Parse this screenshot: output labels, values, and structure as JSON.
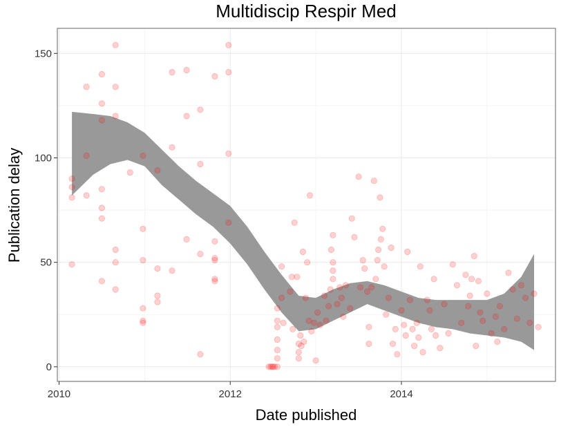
{
  "chart_data": {
    "type": "scatter",
    "title": "Multidiscip Respir Med",
    "xlabel": "Date published",
    "ylabel": "Publication delay",
    "xlim": [
      2009.98,
      2015.8
    ],
    "ylim": [
      -7,
      162
    ],
    "x_ticks": [
      2010,
      2012,
      2014
    ],
    "x_tick_labels": [
      "2010",
      "2012",
      "2014"
    ],
    "y_ticks": [
      0,
      50,
      100,
      150
    ],
    "y_tick_labels": [
      "0",
      "50",
      "100",
      "150"
    ],
    "grid": true,
    "legend": "none",
    "point_color": "#ff0000",
    "band_color": "#999999",
    "series": [
      {
        "type": "points",
        "points": [
          [
            2010.15,
            81
          ],
          [
            2010.15,
            86
          ],
          [
            2010.15,
            90
          ],
          [
            2010.15,
            49
          ],
          [
            2010.32,
            134
          ],
          [
            2010.32,
            101
          ],
          [
            2010.32,
            82
          ],
          [
            2010.5,
            140
          ],
          [
            2010.5,
            126
          ],
          [
            2010.5,
            118
          ],
          [
            2010.5,
            85
          ],
          [
            2010.5,
            76
          ],
          [
            2010.5,
            71
          ],
          [
            2010.5,
            41
          ],
          [
            2010.66,
            154
          ],
          [
            2010.66,
            134
          ],
          [
            2010.66,
            120
          ],
          [
            2010.66,
            56
          ],
          [
            2010.66,
            50
          ],
          [
            2010.66,
            37
          ],
          [
            2010.83,
            93
          ],
          [
            2010.98,
            101
          ],
          [
            2010.98,
            66
          ],
          [
            2010.98,
            51
          ],
          [
            2010.98,
            28
          ],
          [
            2010.98,
            22
          ],
          [
            2010.98,
            21
          ],
          [
            2011.15,
            94
          ],
          [
            2011.15,
            47
          ],
          [
            2011.15,
            34
          ],
          [
            2011.15,
            31
          ],
          [
            2011.32,
            141
          ],
          [
            2011.32,
            105
          ],
          [
            2011.32,
            46
          ],
          [
            2011.49,
            142
          ],
          [
            2011.49,
            120
          ],
          [
            2011.49,
            61
          ],
          [
            2011.65,
            123
          ],
          [
            2011.65,
            97
          ],
          [
            2011.65,
            54
          ],
          [
            2011.65,
            6
          ],
          [
            2011.82,
            139
          ],
          [
            2011.82,
            60
          ],
          [
            2011.82,
            52
          ],
          [
            2011.82,
            51
          ],
          [
            2011.82,
            42
          ],
          [
            2011.82,
            41
          ],
          [
            2011.98,
            154
          ],
          [
            2011.98,
            141
          ],
          [
            2011.98,
            102
          ],
          [
            2011.98,
            69
          ],
          [
            2012.45,
            0
          ],
          [
            2012.47,
            0
          ],
          [
            2012.49,
            0
          ],
          [
            2012.5,
            0
          ],
          [
            2012.52,
            0
          ],
          [
            2012.55,
            0
          ],
          [
            2012.55,
            4
          ],
          [
            2012.55,
            8
          ],
          [
            2012.55,
            13
          ],
          [
            2012.55,
            19
          ],
          [
            2012.55,
            22
          ],
          [
            2012.55,
            28
          ],
          [
            2012.6,
            48
          ],
          [
            2012.6,
            33
          ],
          [
            2012.62,
            21
          ],
          [
            2012.7,
            36
          ],
          [
            2012.72,
            43
          ],
          [
            2012.73,
            18
          ],
          [
            2012.75,
            69
          ],
          [
            2012.78,
            43
          ],
          [
            2012.8,
            11
          ],
          [
            2012.8,
            7
          ],
          [
            2012.8,
            4
          ],
          [
            2012.82,
            15
          ],
          [
            2012.83,
            10
          ],
          [
            2012.85,
            55
          ],
          [
            2012.86,
            12
          ],
          [
            2012.88,
            33
          ],
          [
            2012.9,
            50
          ],
          [
            2012.92,
            22
          ],
          [
            2012.93,
            82
          ],
          [
            2012.95,
            17
          ],
          [
            2012.98,
            21
          ],
          [
            2013.0,
            3
          ],
          [
            2013.02,
            26
          ],
          [
            2013.05,
            20
          ],
          [
            2013.1,
            34
          ],
          [
            2013.12,
            22
          ],
          [
            2013.15,
            29
          ],
          [
            2013.17,
            37
          ],
          [
            2013.18,
            56
          ],
          [
            2013.2,
            63
          ],
          [
            2013.2,
            50
          ],
          [
            2013.2,
            46
          ],
          [
            2013.2,
            42
          ],
          [
            2013.25,
            30
          ],
          [
            2013.28,
            38
          ],
          [
            2013.3,
            33
          ],
          [
            2013.32,
            24
          ],
          [
            2013.35,
            39
          ],
          [
            2013.4,
            28
          ],
          [
            2013.42,
            71
          ],
          [
            2013.45,
            62
          ],
          [
            2013.5,
            91
          ],
          [
            2013.52,
            38
          ],
          [
            2013.55,
            51
          ],
          [
            2013.57,
            47
          ],
          [
            2013.6,
            36
          ],
          [
            2013.62,
            19
          ],
          [
            2013.62,
            11
          ],
          [
            2013.65,
            38
          ],
          [
            2013.68,
            89
          ],
          [
            2013.7,
            42
          ],
          [
            2013.72,
            51
          ],
          [
            2013.73,
            56
          ],
          [
            2013.75,
            81
          ],
          [
            2013.76,
            61
          ],
          [
            2013.78,
            66
          ],
          [
            2013.8,
            48
          ],
          [
            2013.82,
            25
          ],
          [
            2013.85,
            33
          ],
          [
            2013.88,
            57
          ],
          [
            2013.9,
            11
          ],
          [
            2013.93,
            18
          ],
          [
            2013.95,
            6
          ],
          [
            2014.0,
            27
          ],
          [
            2014.03,
            20
          ],
          [
            2014.05,
            15
          ],
          [
            2014.07,
            55
          ],
          [
            2014.1,
            32
          ],
          [
            2014.13,
            18
          ],
          [
            2014.15,
            10
          ],
          [
            2014.18,
            21
          ],
          [
            2014.2,
            14
          ],
          [
            2014.22,
            48
          ],
          [
            2014.25,
            7
          ],
          [
            2014.3,
            32
          ],
          [
            2014.33,
            27
          ],
          [
            2014.35,
            18
          ],
          [
            2014.38,
            42
          ],
          [
            2014.4,
            15
          ],
          [
            2014.45,
            9
          ],
          [
            2014.5,
            30
          ],
          [
            2014.55,
            16
          ],
          [
            2014.6,
            49
          ],
          [
            2014.65,
            39
          ],
          [
            2014.7,
            21
          ],
          [
            2014.75,
            44
          ],
          [
            2014.78,
            29
          ],
          [
            2014.8,
            34
          ],
          [
            2014.82,
            42
          ],
          [
            2014.85,
            53
          ],
          [
            2014.87,
            10
          ],
          [
            2014.9,
            41
          ],
          [
            2014.92,
            26
          ],
          [
            2014.95,
            22
          ],
          [
            2015.0,
            35
          ],
          [
            2015.05,
            16
          ],
          [
            2015.1,
            24
          ],
          [
            2015.12,
            12
          ],
          [
            2015.15,
            29
          ],
          [
            2015.2,
            18
          ],
          [
            2015.25,
            45
          ],
          [
            2015.3,
            37
          ],
          [
            2015.35,
            23
          ],
          [
            2015.4,
            39
          ],
          [
            2015.45,
            33
          ],
          [
            2015.5,
            21
          ],
          [
            2015.55,
            35
          ],
          [
            2015.6,
            19
          ]
        ]
      },
      {
        "type": "confidence_band",
        "x": [
          2010.15,
          2010.4,
          2010.6,
          2010.8,
          2011.0,
          2011.2,
          2011.4,
          2011.6,
          2011.8,
          2012.0,
          2012.2,
          2012.4,
          2012.6,
          2012.8,
          2013.0,
          2013.2,
          2013.4,
          2013.6,
          2013.8,
          2014.0,
          2014.2,
          2014.4,
          2014.6,
          2014.8,
          2015.0,
          2015.2,
          2015.4,
          2015.55
        ],
        "upper": [
          122,
          121,
          120,
          117,
          112,
          104,
          96,
          89,
          83,
          77,
          67,
          55,
          44,
          34,
          33,
          37,
          40,
          41,
          39,
          36,
          33,
          32,
          32,
          32,
          32,
          35,
          43,
          54
        ],
        "lower": [
          82,
          92,
          97,
          99,
          96,
          87,
          80,
          73,
          67,
          59,
          49,
          37,
          26,
          17,
          18,
          22,
          26,
          30,
          27,
          24,
          21,
          19,
          18,
          16,
          15,
          14,
          12,
          8
        ]
      }
    ]
  }
}
